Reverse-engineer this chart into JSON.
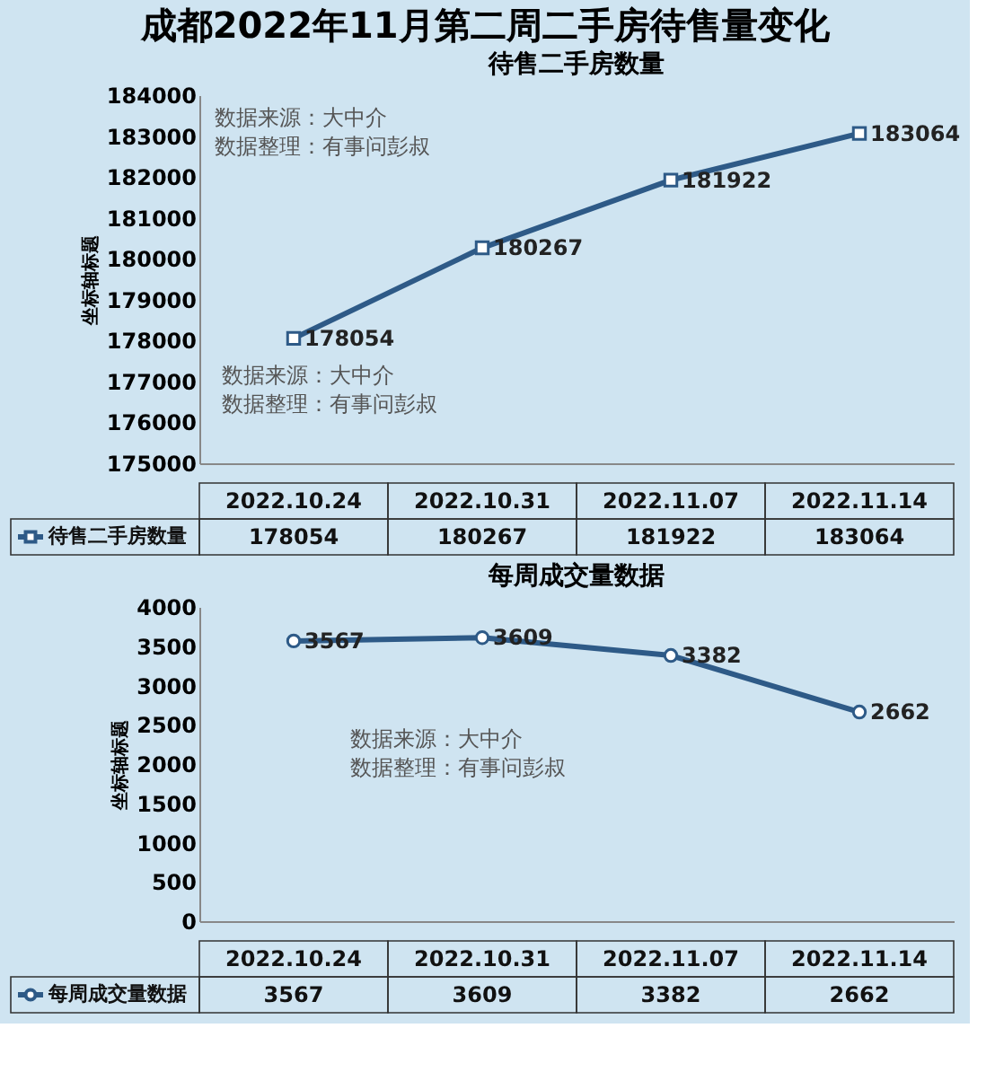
{
  "chart_data": [
    {
      "type": "line",
      "title": "成都2022年11月第二周二手房待售量变化",
      "subtitle": "待售二手房数量",
      "ylabel": "坐标轴标题",
      "categories": [
        "2022.10.24",
        "2022.10.31",
        "2022.11.07",
        "2022.11.14"
      ],
      "series": [
        {
          "name": "待售二手房数量",
          "color": "#2e5a87",
          "values": [
            178054,
            180267,
            181922,
            183064
          ]
        }
      ],
      "ylim": [
        175000,
        184000
      ],
      "yticks": [
        175000,
        176000,
        177000,
        178000,
        179000,
        180000,
        181000,
        182000,
        183000,
        184000
      ],
      "marker": "square",
      "line_style": "solid",
      "data_labels": true,
      "legend": "bottom",
      "annotations": [
        "数据来源：大中介",
        "数据整理：有事问彭叔",
        "数据来源：大中介",
        "数据整理：有事问彭叔",
        {
          "text": "178054",
          "x": "2022.10.24",
          "y": 178054
        },
        {
          "text": "180267",
          "x": "2022.10.31",
          "y": 180267
        },
        {
          "text": "181922",
          "x": "2022.11.07",
          "y": 181922
        },
        {
          "text": "183064",
          "x": "2022.11.14",
          "y": 183064
        }
      ]
    },
    {
      "type": "line",
      "title": "每周成交量数据",
      "ylabel": "坐标轴标题",
      "categories": [
        "2022.10.24",
        "2022.10.31",
        "2022.11.07",
        "2022.11.14"
      ],
      "series": [
        {
          "name": "每周成交量数据",
          "color": "#2e5a87",
          "values": [
            3567,
            3609,
            3382,
            2662
          ]
        }
      ],
      "ylim": [
        0,
        4000
      ],
      "yticks": [
        0,
        500,
        1000,
        1500,
        2000,
        2500,
        3000,
        3500,
        4000
      ],
      "marker": "circle",
      "line_style": "solid",
      "data_labels": true,
      "legend": "bottom",
      "annotations": [
        "数据来源：大中介",
        "数据整理：有事问彭叔",
        {
          "text": "3567",
          "x": "2022.10.24",
          "y": 3567
        },
        {
          "text": "3609",
          "x": "2022.10.31",
          "y": 3609
        },
        {
          "text": "3382",
          "x": "2022.11.07",
          "y": 3382
        },
        {
          "text": "2662",
          "x": "2022.11.14",
          "y": 2662
        }
      ]
    }
  ]
}
